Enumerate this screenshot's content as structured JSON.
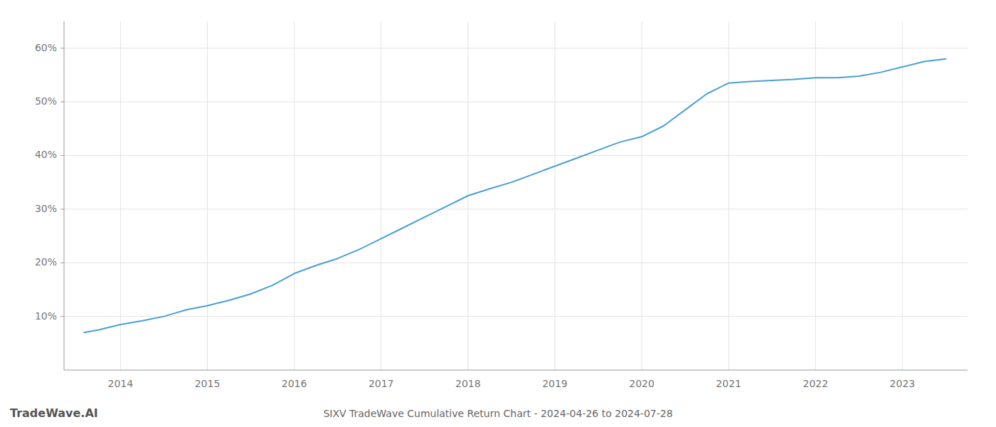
{
  "chart_data": {
    "type": "line",
    "title": "SIXV TradeWave Cumulative Return Chart - 2024-04-26 to 2024-07-28",
    "annotations": [
      "TradeWave.AI"
    ],
    "x": [
      2013.58,
      2013.75,
      2014.0,
      2014.25,
      2014.5,
      2014.75,
      2015.0,
      2015.25,
      2015.5,
      2015.75,
      2016.0,
      2016.25,
      2016.5,
      2016.75,
      2017.0,
      2017.25,
      2017.5,
      2017.75,
      2018.0,
      2018.25,
      2018.5,
      2018.75,
      2019.0,
      2019.25,
      2019.5,
      2019.75,
      2020.0,
      2020.25,
      2020.5,
      2020.75,
      2021.0,
      2021.25,
      2021.5,
      2021.75,
      2022.0,
      2022.25,
      2022.5,
      2022.75,
      2023.0,
      2023.25,
      2023.5
    ],
    "values": [
      7.0,
      7.5,
      8.5,
      9.2,
      10.0,
      11.2,
      12.0,
      13.0,
      14.2,
      15.8,
      18.0,
      19.5,
      20.8,
      22.5,
      24.5,
      26.5,
      28.5,
      30.5,
      32.5,
      33.8,
      35.0,
      36.5,
      38.0,
      39.5,
      41.0,
      42.5,
      43.5,
      45.5,
      48.5,
      51.5,
      53.5,
      53.8,
      54.0,
      54.2,
      54.5,
      54.5,
      54.8,
      55.5,
      56.5,
      57.5,
      58.0
    ],
    "color": "#4a9fd4",
    "xlim": [
      2013.35,
      2023.75
    ],
    "ylim": [
      0,
      65
    ],
    "xticks": [
      2014,
      2015,
      2016,
      2017,
      2018,
      2019,
      2020,
      2021,
      2022,
      2023
    ],
    "yticks": [
      {
        "value": 10,
        "label": "10%"
      },
      {
        "value": 20,
        "label": "20%"
      },
      {
        "value": 30,
        "label": "30%"
      },
      {
        "value": 40,
        "label": "40%"
      },
      {
        "value": 50,
        "label": "50%"
      },
      {
        "value": 60,
        "label": "60%"
      }
    ],
    "grid": true
  }
}
